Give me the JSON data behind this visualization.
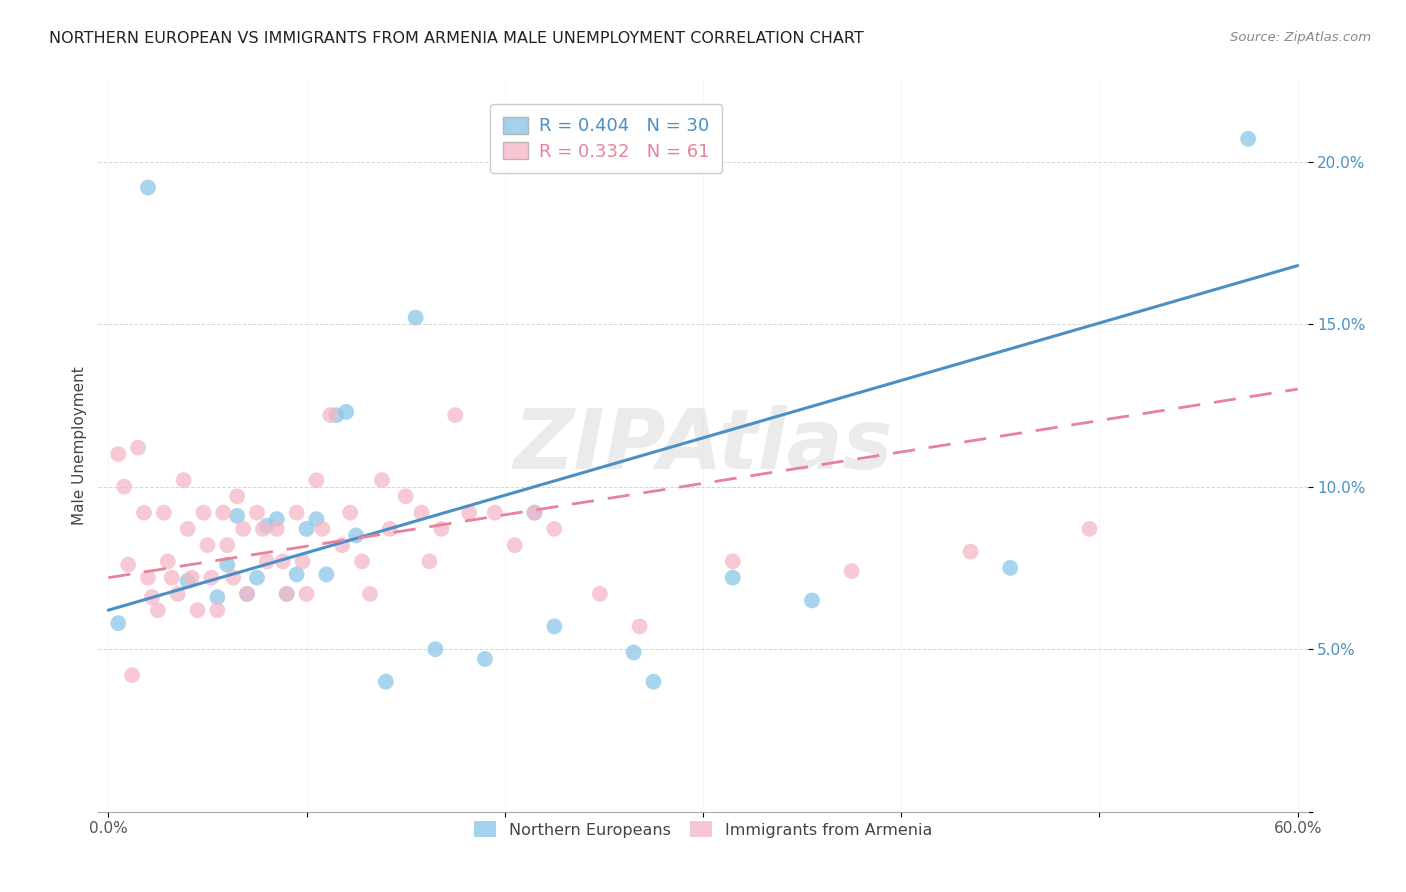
{
  "title": "NORTHERN EUROPEAN VS IMMIGRANTS FROM ARMENIA MALE UNEMPLOYMENT CORRELATION CHART",
  "source": "Source: ZipAtlas.com",
  "ylabel": "Male Unemployment",
  "xlabel": "",
  "xlim": [
    -0.005,
    0.605
  ],
  "ylim": [
    0.0,
    0.225
  ],
  "xticks": [
    0.0,
    0.1,
    0.2,
    0.3,
    0.4,
    0.5,
    0.6
  ],
  "xticklabels": [
    "0.0%",
    "",
    "",
    "",
    "",
    "",
    "60.0%"
  ],
  "yticks": [
    0.0,
    0.05,
    0.1,
    0.15,
    0.2
  ],
  "yticklabels": [
    "",
    "5.0%",
    "10.0%",
    "15.0%",
    "20.0%"
  ],
  "blue_color": "#8dc6e8",
  "pink_color": "#f5b8c8",
  "blue_line_color": "#4a90c4",
  "pink_line_color": "#e8829a",
  "watermark": "ZIPAtlas",
  "legend_blue_R": "R = 0.404",
  "legend_blue_N": "N = 30",
  "legend_pink_R": "R = 0.332",
  "legend_pink_N": "N = 61",
  "blue_label": "Northern Europeans",
  "pink_label": "Immigrants from Armenia",
  "blue_x": [
    0.005,
    0.02,
    0.04,
    0.055,
    0.06,
    0.065,
    0.07,
    0.075,
    0.08,
    0.085,
    0.09,
    0.095,
    0.1,
    0.105,
    0.11,
    0.115,
    0.12,
    0.125,
    0.14,
    0.155,
    0.165,
    0.19,
    0.215,
    0.225,
    0.265,
    0.275,
    0.315,
    0.355,
    0.455,
    0.575
  ],
  "blue_y": [
    0.058,
    0.192,
    0.071,
    0.066,
    0.076,
    0.091,
    0.067,
    0.072,
    0.088,
    0.09,
    0.067,
    0.073,
    0.087,
    0.09,
    0.073,
    0.122,
    0.123,
    0.085,
    0.04,
    0.152,
    0.05,
    0.047,
    0.092,
    0.057,
    0.049,
    0.04,
    0.072,
    0.065,
    0.075,
    0.207
  ],
  "pink_x": [
    0.005,
    0.008,
    0.01,
    0.012,
    0.015,
    0.018,
    0.02,
    0.022,
    0.025,
    0.028,
    0.03,
    0.032,
    0.035,
    0.038,
    0.04,
    0.042,
    0.045,
    0.048,
    0.05,
    0.052,
    0.055,
    0.058,
    0.06,
    0.063,
    0.065,
    0.068,
    0.07,
    0.075,
    0.078,
    0.08,
    0.085,
    0.088,
    0.09,
    0.095,
    0.098,
    0.1,
    0.105,
    0.108,
    0.112,
    0.118,
    0.122,
    0.128,
    0.132,
    0.138,
    0.142,
    0.15,
    0.158,
    0.162,
    0.168,
    0.175,
    0.182,
    0.195,
    0.205,
    0.215,
    0.225,
    0.248,
    0.268,
    0.315,
    0.375,
    0.435,
    0.495
  ],
  "pink_y": [
    0.11,
    0.1,
    0.076,
    0.042,
    0.112,
    0.092,
    0.072,
    0.066,
    0.062,
    0.092,
    0.077,
    0.072,
    0.067,
    0.102,
    0.087,
    0.072,
    0.062,
    0.092,
    0.082,
    0.072,
    0.062,
    0.092,
    0.082,
    0.072,
    0.097,
    0.087,
    0.067,
    0.092,
    0.087,
    0.077,
    0.087,
    0.077,
    0.067,
    0.092,
    0.077,
    0.067,
    0.102,
    0.087,
    0.122,
    0.082,
    0.092,
    0.077,
    0.067,
    0.102,
    0.087,
    0.097,
    0.092,
    0.077,
    0.087,
    0.122,
    0.092,
    0.092,
    0.082,
    0.092,
    0.087,
    0.067,
    0.057,
    0.077,
    0.074,
    0.08,
    0.087
  ],
  "blue_line_start_y": 0.062,
  "blue_line_end_y": 0.168,
  "pink_line_start_y": 0.072,
  "pink_line_end_y": 0.13
}
